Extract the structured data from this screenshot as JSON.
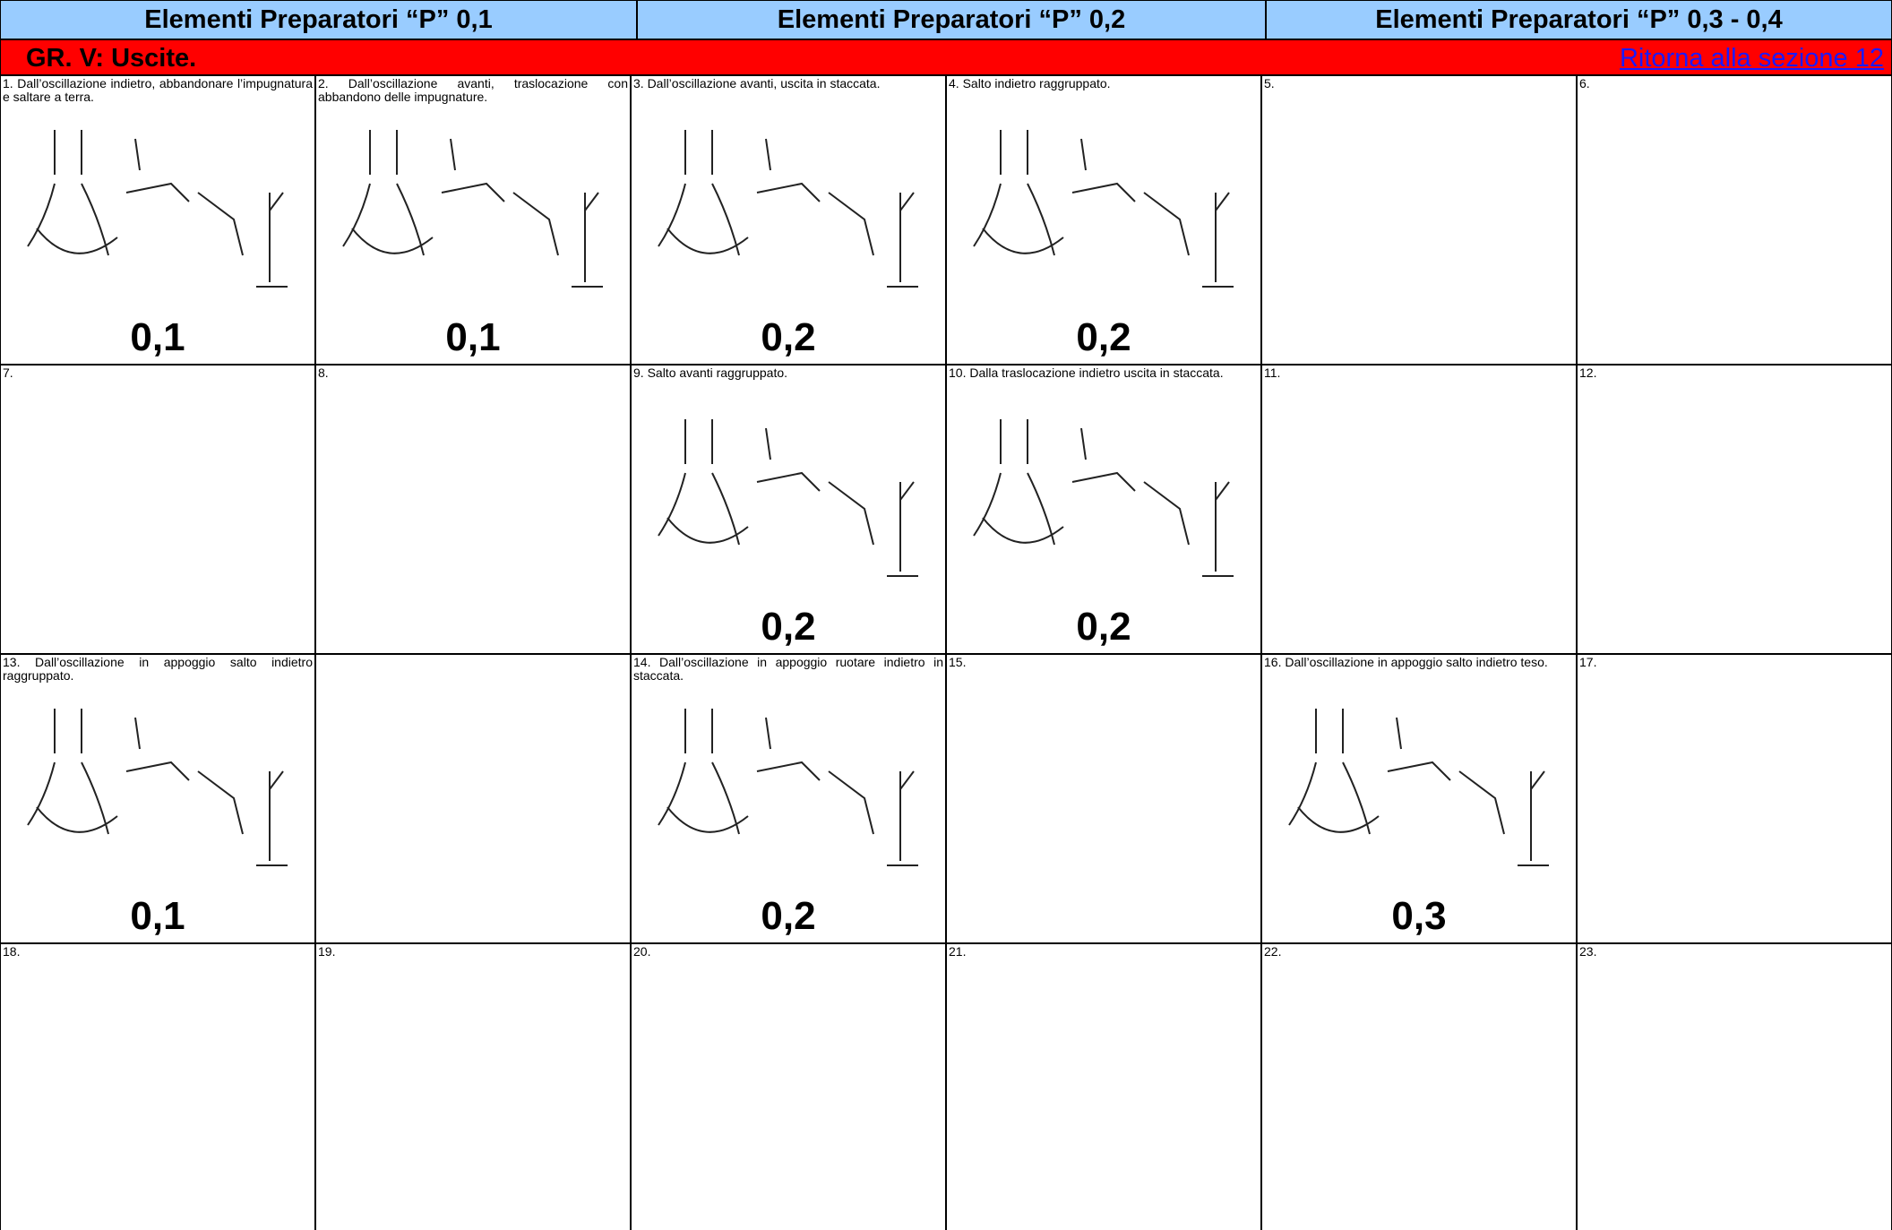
{
  "headers": [
    "Elementi Preparatori  “P” 0,1",
    "Elementi Preparatori  “P” 0,2",
    "Elementi Preparatori  “P” 0,3 - 0,4"
  ],
  "group": {
    "title": "GR. V:  Uscite.",
    "link": "Ritorna alla sezione 12"
  },
  "cells": [
    {
      "label": "1.  Dall’oscillazione indietro, abbandonare l’impugnatura e saltare a terra.",
      "score": "0,1"
    },
    {
      "label": "2.  Dall’oscillazione avanti, traslocazione con abbandono delle impugnature.",
      "score": "0,1"
    },
    {
      "label": "3.  Dall’oscillazione avanti, uscita in staccata.",
      "score": "0,2"
    },
    {
      "label": "4.  Salto indietro raggruppato.",
      "score": "0,2"
    },
    {
      "label": "5."
    },
    {
      "label": "6."
    },
    {
      "label": "7."
    },
    {
      "label": "8."
    },
    {
      "label": "9.  Salto avanti raggruppato.",
      "score": "0,2"
    },
    {
      "label": "10. Dalla traslocazione indietro uscita in staccata.",
      "score": "0,2"
    },
    {
      "label": "11."
    },
    {
      "label": "12."
    },
    {
      "label": "13. Dall’oscillazione in appoggio salto indietro raggruppato.",
      "score": "0,1"
    },
    {},
    {
      "label": "14. Dall’oscillazione in appoggio ruotare indietro in staccata.",
      "score": "0,2"
    },
    {
      "label": "15."
    },
    {
      "label": "16. Dall’oscillazione in appoggio salto indietro teso.",
      "score": "0,3"
    },
    {
      "label": "17."
    },
    {
      "label": "18."
    },
    {
      "label": "19."
    },
    {
      "label": "20."
    },
    {
      "label": "21."
    },
    {
      "label": "22."
    },
    {
      "label": "23."
    }
  ]
}
